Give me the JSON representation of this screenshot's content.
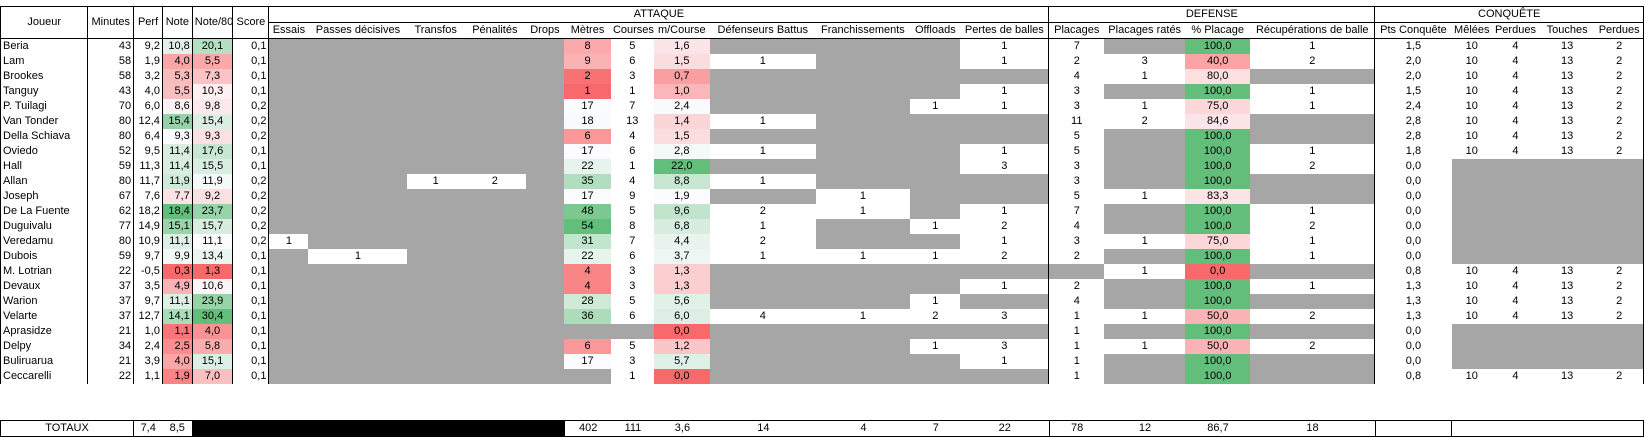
{
  "groups": {
    "attaque": "ATTAQUE",
    "defense": "DEFENSE",
    "conquete": "CONQUÊTE"
  },
  "columns": [
    "Joueur",
    "Minutes",
    "Perf",
    "Note",
    "Note/80",
    "Score",
    "Essais",
    "Passes décisives",
    "Transfos",
    "Pénalités",
    "Drops",
    "Mètres",
    "Courses",
    "m/Course",
    "Défenseurs Battus",
    "Franchissements",
    "Offloads",
    "Pertes de balles",
    "Placages",
    "Placages ratés",
    "% Placage",
    "Récupérations de balle",
    "Pts Conquête",
    "Mêlées",
    "Perdues",
    "Touches",
    "Perdues"
  ],
  "rows": [
    [
      "Beria",
      "43",
      "9,2",
      "10,8",
      "20,1",
      "0,1",
      "",
      "",
      "",
      "",
      "",
      "8",
      "5",
      "1,6",
      "",
      "",
      "",
      "1",
      "7",
      "",
      "100,0",
      "1",
      "1,5",
      "10",
      "4",
      "13",
      "2"
    ],
    [
      "Lam",
      "58",
      "1,9",
      "4,0",
      "5,5",
      "0,1",
      "",
      "",
      "",
      "",
      "",
      "9",
      "6",
      "1,5",
      "1",
      "",
      "",
      "1",
      "2",
      "3",
      "40,0",
      "2",
      "2,0",
      "10",
      "4",
      "13",
      "2"
    ],
    [
      "Brookes",
      "58",
      "3,2",
      "5,3",
      "7,3",
      "0,1",
      "",
      "",
      "",
      "",
      "",
      "2",
      "3",
      "0,7",
      "",
      "",
      "",
      "",
      "4",
      "1",
      "80,0",
      "",
      "2,0",
      "10",
      "4",
      "13",
      "2"
    ],
    [
      "Tanguy",
      "43",
      "4,0",
      "5,5",
      "10,3",
      "0,1",
      "",
      "",
      "",
      "",
      "",
      "1",
      "1",
      "1,0",
      "",
      "",
      "",
      "1",
      "3",
      "",
      "100,0",
      "1",
      "1,5",
      "10",
      "4",
      "13",
      "2"
    ],
    [
      "P. Tuilagi",
      "70",
      "6,0",
      "8,6",
      "9,8",
      "0,2",
      "",
      "",
      "",
      "",
      "",
      "17",
      "7",
      "2,4",
      "",
      "",
      "1",
      "1",
      "3",
      "1",
      "75,0",
      "1",
      "2,4",
      "10",
      "4",
      "13",
      "2"
    ],
    [
      "Van Tonder",
      "80",
      "12,4",
      "15,4",
      "15,4",
      "0,2",
      "",
      "",
      "",
      "",
      "",
      "18",
      "13",
      "1,4",
      "1",
      "",
      "",
      "",
      "11",
      "2",
      "84,6",
      "",
      "2,8",
      "10",
      "4",
      "13",
      "2"
    ],
    [
      "Della Schiava",
      "80",
      "6,4",
      "9,3",
      "9,3",
      "0,2",
      "",
      "",
      "",
      "",
      "",
      "6",
      "4",
      "1,5",
      "",
      "",
      "",
      "",
      "5",
      "",
      "100,0",
      "",
      "2,8",
      "10",
      "4",
      "13",
      "2"
    ],
    [
      "Oviedo",
      "52",
      "9,5",
      "11,4",
      "17,6",
      "0,1",
      "",
      "",
      "",
      "",
      "",
      "17",
      "6",
      "2,8",
      "1",
      "",
      "",
      "1",
      "5",
      "",
      "100,0",
      "1",
      "1,8",
      "10",
      "4",
      "13",
      "2"
    ],
    [
      "Hall",
      "59",
      "11,3",
      "11,4",
      "15,5",
      "0,1",
      "",
      "",
      "",
      "",
      "",
      "22",
      "1",
      "22,0",
      "",
      "",
      "",
      "3",
      "3",
      "",
      "100,0",
      "2",
      "0,0",
      "",
      "",
      "",
      ""
    ],
    [
      "Allan",
      "80",
      "11,7",
      "11,9",
      "11,9",
      "0,2",
      "",
      "",
      "1",
      "2",
      "",
      "35",
      "4",
      "8,8",
      "1",
      "",
      "",
      "",
      "3",
      "",
      "100,0",
      "",
      "0,0",
      "",
      "",
      "",
      ""
    ],
    [
      "Joseph",
      "67",
      "7,6",
      "7,7",
      "9,2",
      "0,2",
      "",
      "",
      "",
      "",
      "",
      "17",
      "9",
      "1,9",
      "",
      "1",
      "",
      "",
      "5",
      "1",
      "83,3",
      "",
      "0,0",
      "",
      "",
      "",
      ""
    ],
    [
      "De La Fuente",
      "62",
      "18,2",
      "18,4",
      "23,7",
      "0,2",
      "",
      "",
      "",
      "",
      "",
      "48",
      "5",
      "9,6",
      "2",
      "1",
      "",
      "1",
      "7",
      "",
      "100,0",
      "1",
      "0,0",
      "",
      "",
      "",
      ""
    ],
    [
      "Duguivalu",
      "77",
      "14,9",
      "15,1",
      "15,7",
      "0,2",
      "",
      "",
      "",
      "",
      "",
      "54",
      "8",
      "6,8",
      "1",
      "",
      "1",
      "2",
      "4",
      "",
      "100,0",
      "2",
      "0,0",
      "",
      "",
      "",
      ""
    ],
    [
      "Veredamu",
      "80",
      "10,9",
      "11,1",
      "11,1",
      "0,2",
      "1",
      "",
      "",
      "",
      "",
      "31",
      "7",
      "4,4",
      "2",
      "",
      "",
      "1",
      "3",
      "1",
      "75,0",
      "1",
      "0,0",
      "",
      "",
      "",
      ""
    ],
    [
      "Dubois",
      "59",
      "9,7",
      "9,9",
      "13,4",
      "0,1",
      "",
      "1",
      "",
      "",
      "",
      "22",
      "6",
      "3,7",
      "1",
      "1",
      "1",
      "2",
      "2",
      "",
      "100,0",
      "1",
      "0,0",
      "",
      "",
      "",
      ""
    ],
    [
      "M. Lotrian",
      "22",
      "-0,5",
      "0,3",
      "1,3",
      "0,1",
      "",
      "",
      "",
      "",
      "",
      "4",
      "3",
      "1,3",
      "",
      "",
      "",
      "",
      "",
      "1",
      "0,0",
      "",
      "0,8",
      "10",
      "4",
      "13",
      "2"
    ],
    [
      "Devaux",
      "37",
      "3,5",
      "4,9",
      "10,6",
      "0,1",
      "",
      "",
      "",
      "",
      "",
      "4",
      "3",
      "1,3",
      "",
      "",
      "",
      "1",
      "2",
      "",
      "100,0",
      "1",
      "1,3",
      "10",
      "4",
      "13",
      "2"
    ],
    [
      "Warion",
      "37",
      "9,7",
      "11,1",
      "23,9",
      "0,1",
      "",
      "",
      "",
      "",
      "",
      "28",
      "5",
      "5,6",
      "",
      "",
      "1",
      "",
      "4",
      "",
      "100,0",
      "",
      "1,3",
      "10",
      "4",
      "13",
      "2"
    ],
    [
      "Velarte",
      "37",
      "12,7",
      "14,1",
      "30,4",
      "0,1",
      "",
      "",
      "",
      "",
      "",
      "36",
      "6",
      "6,0",
      "4",
      "1",
      "2",
      "3",
      "1",
      "1",
      "50,0",
      "2",
      "1,3",
      "10",
      "4",
      "13",
      "2"
    ],
    [
      "Aprasidze",
      "21",
      "1,0",
      "1,1",
      "4,0",
      "0,1",
      "",
      "",
      "",
      "",
      "",
      "",
      "",
      "0,0",
      "",
      "",
      "",
      "",
      "1",
      "",
      "100,0",
      "",
      "0,0",
      "",
      "",
      "",
      ""
    ],
    [
      "Delpy",
      "34",
      "2,4",
      "2,5",
      "5,8",
      "0,1",
      "",
      "",
      "",
      "",
      "",
      "6",
      "5",
      "1,2",
      "",
      "",
      "1",
      "3",
      "1",
      "1",
      "50,0",
      "2",
      "0,0",
      "",
      "",
      "",
      ""
    ],
    [
      "Buliruarua",
      "21",
      "3,9",
      "4,0",
      "15,1",
      "0,1",
      "",
      "",
      "",
      "",
      "",
      "17",
      "3",
      "5,7",
      "",
      "",
      "",
      "1",
      "1",
      "",
      "100,0",
      "",
      "0,0",
      "",
      "",
      "",
      ""
    ],
    [
      "Ceccarelli",
      "22",
      "1,1",
      "1,9",
      "7,0",
      "0,1",
      "",
      "",
      "",
      "",
      "",
      "",
      "1",
      "0,0",
      "",
      "",
      "",
      "",
      "1",
      "",
      "100,0",
      "",
      "0,8",
      "10",
      "4",
      "13",
      "2"
    ]
  ],
  "totals": {
    "label": "TOTAUX",
    "perf": "7,4",
    "note": "8,5",
    "metres": "402",
    "courses": "111",
    "mcourse": "3,6",
    "def_battus": "14",
    "franch": "4",
    "offloads": "7",
    "pertes": "22",
    "placages": "78",
    "plac_rates": "12",
    "pct_placage": "86,7",
    "recup": "18"
  },
  "colors": {
    "gray": "#a6a6a6",
    "green": "#63be7b",
    "red": "#f8696b",
    "neutral": "#fcfcff",
    "black": "#000000"
  }
}
